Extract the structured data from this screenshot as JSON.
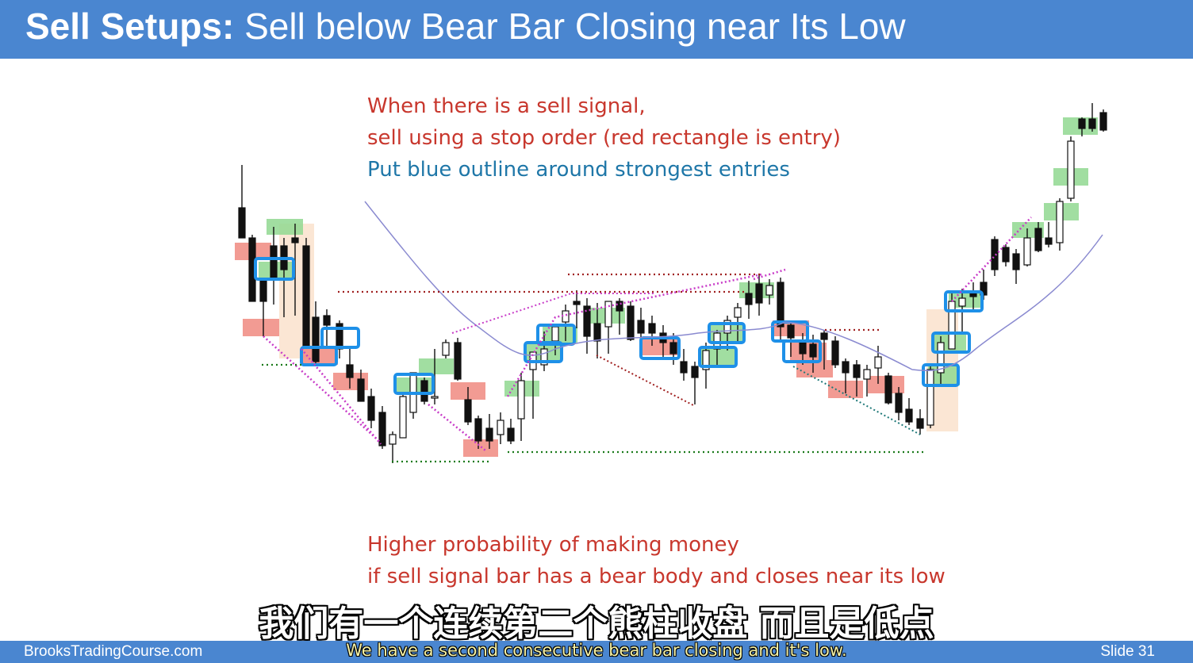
{
  "header": {
    "title_bold": "Sell Setups:",
    "title_rest": "Sell below Bear Bar Closing near Its Low"
  },
  "notes_top": {
    "line1": "When there is a sell signal,",
    "line2": "sell using a stop order (red rectangle is entry)",
    "line3": "Put blue outline around strongest entries"
  },
  "notes_bottom": {
    "line1": "Higher probability of making money",
    "line2": "if sell signal bar has a bear body and closes near its low"
  },
  "subtitles": {
    "chinese": "我们有一个连续第二个熊柱收盘 而且是低点",
    "english": "We have a second consecutive bear bar closing and it's low."
  },
  "footer": {
    "site": "BrooksTradingCourse.com",
    "slide": "Slide  31"
  },
  "colors": {
    "header_bg": "#4a86d0",
    "note_red": "#c8372d",
    "note_blue": "#1f77a8",
    "bull_box": "#90d890",
    "bear_box": "#f08a80",
    "outline": "#1e90e8",
    "ema": "#8a8ad0"
  }
}
